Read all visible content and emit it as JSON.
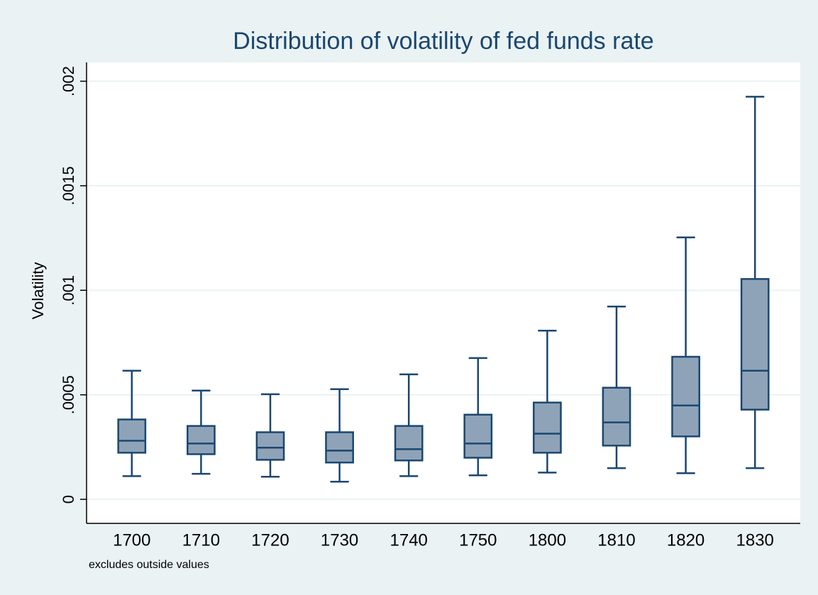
{
  "chart_data": {
    "type": "box",
    "title": "Distribution of volatility of fed funds rate",
    "y_label": "Volatility",
    "note": "excludes outside values",
    "categories": [
      "1700",
      "1710",
      "1720",
      "1730",
      "1740",
      "1750",
      "1800",
      "1810",
      "1820",
      "1830"
    ],
    "series": [
      {
        "color": "#8fa3b8",
        "whisker_low": [
          0.000111,
          0.000122,
          0.000108,
          8.45e-05,
          0.000111,
          0.000115,
          0.000128,
          0.000149,
          0.000125,
          0.000149
        ],
        "q1": [
          0.000223,
          0.000216,
          0.000189,
          0.000176,
          0.000186,
          0.000199,
          0.000223,
          0.000257,
          0.000301,
          0.000429
        ],
        "median": [
          0.00028,
          0.000267,
          0.000247,
          0.000233,
          0.00024,
          0.000267,
          0.000314,
          0.000368,
          0.000449,
          0.000615
        ],
        "q3": [
          0.000382,
          0.000351,
          0.000321,
          0.000321,
          0.000351,
          0.000405,
          0.000463,
          0.000534,
          0.000682,
          0.001054
        ],
        "whisker_high": [
          0.000615,
          0.00052,
          0.000503,
          0.000527,
          0.000598,
          0.000676,
          0.000807,
          0.000922,
          0.001253,
          0.001926
        ]
      }
    ],
    "line_color": "#1a476f",
    "ylim": [
      -0.000115,
      0.00209
    ],
    "yticks": [
      0,
      {
        "value": 0.0005,
        "label": ".0005"
      },
      {
        "value": 0.001,
        "label": ".001"
      },
      {
        "value": 0.0015,
        "label": ".0015"
      },
      {
        "value": 0.002,
        "label": ".002"
      }
    ],
    "grid": true
  }
}
